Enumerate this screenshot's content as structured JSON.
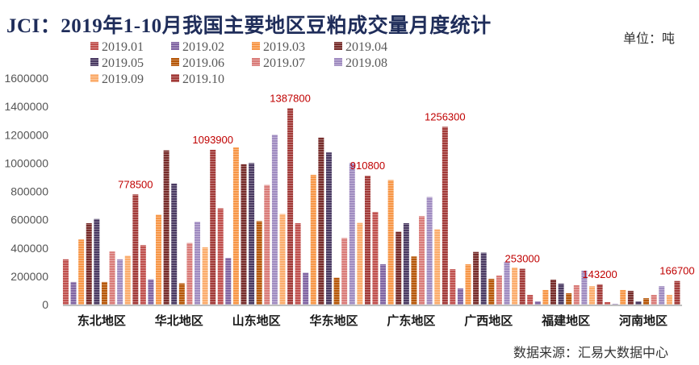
{
  "title": "JCI：2019年1-10月我国主要地区豆粕成交量月度统计",
  "unit_label": "单位：吨",
  "source_label": "数据来源：汇易大数据中心",
  "chart_data": {
    "type": "bar",
    "title": "JCI：2019年1-10月我国主要地区豆粕成交量月度统计",
    "xlabel": "",
    "ylabel": "吨",
    "ylim": [
      0,
      1600000
    ],
    "yticks": [
      0,
      200000,
      400000,
      600000,
      800000,
      1000000,
      1200000,
      1400000,
      1600000
    ],
    "grid": false,
    "legend_position": "top-left",
    "categories": [
      "东北地区",
      "华北地区",
      "山东地区",
      "华东地区",
      "广东地区",
      "广西地区",
      "福建地区",
      "河南地区"
    ],
    "series": [
      {
        "name": "2019.01",
        "color": "#c0504d",
        "values": [
          320000,
          420000,
          680000,
          575000,
          655000,
          250000,
          68000,
          17000
        ]
      },
      {
        "name": "2019.02",
        "color": "#8064a2",
        "values": [
          160000,
          178000,
          330000,
          225000,
          285000,
          114000,
          23000,
          5000
        ]
      },
      {
        "name": "2019.03",
        "color": "#f79646",
        "values": [
          460000,
          635000,
          1110000,
          917000,
          880000,
          285000,
          103000,
          103000
        ]
      },
      {
        "name": "2019.04",
        "color": "#772c2a",
        "values": [
          575000,
          1090000,
          992000,
          1180000,
          515000,
          372000,
          177000,
          97000
        ]
      },
      {
        "name": "2019.05",
        "color": "#4a3a62",
        "values": [
          605000,
          855000,
          1000000,
          1075000,
          575000,
          367000,
          148000,
          23000
        ]
      },
      {
        "name": "2019.06",
        "color": "#b65708",
        "values": [
          160000,
          150000,
          590000,
          190000,
          340000,
          182000,
          80000,
          45000
        ]
      },
      {
        "name": "2019.07",
        "color": "#d97b78",
        "values": [
          375000,
          435000,
          845000,
          470000,
          625000,
          205000,
          137000,
          68000
        ]
      },
      {
        "name": "2019.08",
        "color": "#9f8bc0",
        "values": [
          320000,
          585000,
          1200000,
          1000000,
          760000,
          302000,
          240000,
          130000
        ]
      },
      {
        "name": "2019.09",
        "color": "#fbac6b",
        "values": [
          345000,
          405000,
          640000,
          577000,
          532000,
          262000,
          130000,
          68000
        ]
      },
      {
        "name": "2019.10",
        "color": "#a23a38",
        "values": [
          778500,
          1093900,
          1387800,
          910800,
          1256300,
          253000,
          143200,
          166700
        ]
      }
    ],
    "data_labels": [
      "778500",
      "1093900",
      "1387800",
      "910800",
      "1256300",
      "253000",
      "143200",
      "166700"
    ],
    "data_label_color": "#c00000"
  }
}
